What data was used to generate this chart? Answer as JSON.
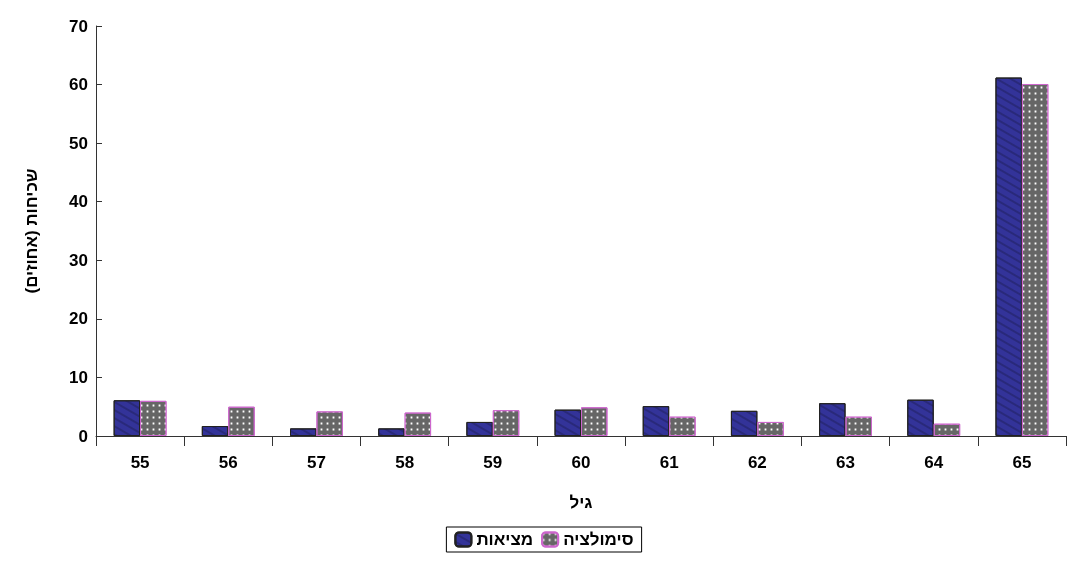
{
  "chart_data": {
    "type": "bar",
    "xlabel": "גיל",
    "ylabel": "שכיחות (אחוזים)",
    "categories": [
      "55",
      "56",
      "57",
      "58",
      "59",
      "60",
      "61",
      "62",
      "63",
      "64",
      "65"
    ],
    "series": [
      {
        "name": "מציאות",
        "color": "#333399",
        "values": [
          6.1,
          1.7,
          1.3,
          1.3,
          2.4,
          4.5,
          5.1,
          4.3,
          5.6,
          6.2,
          61.2
        ]
      },
      {
        "name": "סימולציה",
        "color": "#666666",
        "values": [
          6.0,
          5.0,
          4.2,
          4.0,
          4.4,
          4.9,
          3.3,
          2.4,
          3.3,
          2.1,
          60.1
        ]
      }
    ],
    "ylim": [
      0,
      70
    ],
    "yticks": [
      0,
      10,
      20,
      30,
      40,
      50,
      60,
      70
    ],
    "grid": false,
    "legend": "bottom"
  }
}
